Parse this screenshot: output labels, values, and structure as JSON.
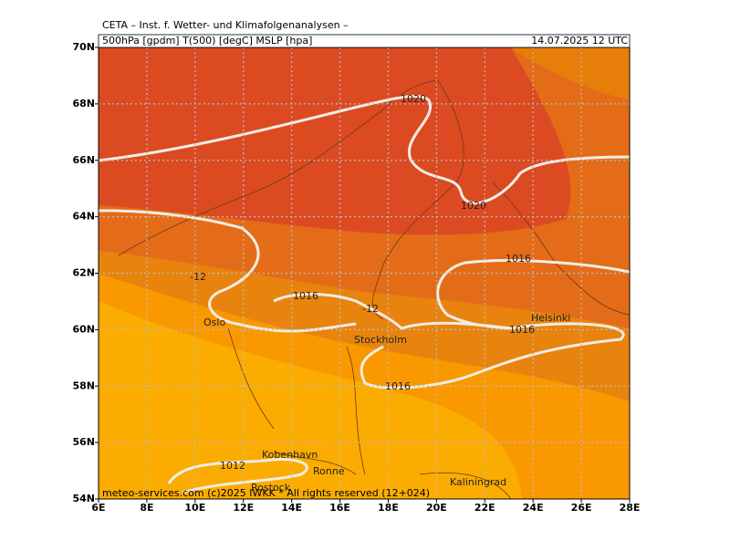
{
  "header": {
    "line1": "CETA – Inst. f. Wetter- und Klimafolgenanalysen –",
    "line2": "500hPa [gpdm] T(500) [degC] MSLP [hpa]",
    "datetime": "14.07.2025 12 UTC"
  },
  "axes": {
    "lat_labels": [
      "70N",
      "68N",
      "66N",
      "64N",
      "62N",
      "60N",
      "58N",
      "56N",
      "54N"
    ],
    "lon_labels": [
      "6E",
      "8E",
      "10E",
      "12E",
      "14E",
      "16E",
      "18E",
      "20E",
      "22E",
      "24E",
      "26E",
      "28E"
    ]
  },
  "places": [
    "Oslo",
    "Stockholm",
    "Helsinki",
    "Kobenhavn",
    "Ronne",
    "Kaliningrad",
    "Rostock"
  ],
  "contour_labels": [
    "1020",
    "1020",
    "1016",
    "1016",
    "1016",
    "1016",
    "1012",
    "-12",
    "-12"
  ],
  "footer": "meteo-services.com (c)2025 IWKK * All rights reserved (12+024)"
}
